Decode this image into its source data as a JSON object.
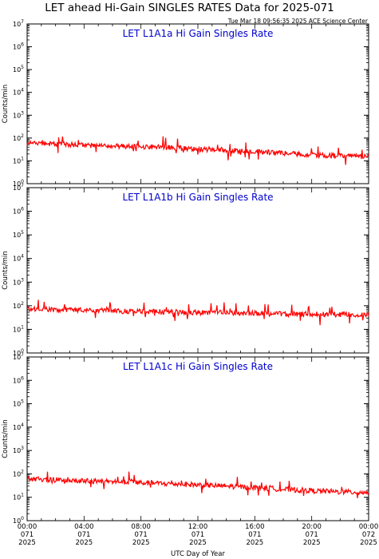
{
  "title": "LET ahead Hi-Gain SINGLES RATES Data for 2025-071",
  "timestamp": "Tue Mar 18 09:56:35 2025 ACE Science Center",
  "colors": {
    "trace": "#ff0000",
    "panel_label": "#0000cc",
    "axis": "#000000"
  },
  "xlabel": "UTC Day of Year",
  "x_ticks": [
    {
      "time": "00:00",
      "doy": "071",
      "year": "2025"
    },
    {
      "time": "04:00",
      "doy": "071",
      "year": "2025"
    },
    {
      "time": "08:00",
      "doy": "071",
      "year": "2025"
    },
    {
      "time": "12:00",
      "doy": "071",
      "year": "2025"
    },
    {
      "time": "16:00",
      "doy": "071",
      "year": "2025"
    },
    {
      "time": "20:00",
      "doy": "071",
      "year": "2025"
    },
    {
      "time": "00:00",
      "doy": "072",
      "year": "2025"
    }
  ],
  "y_ticks": [
    {
      "base": "10",
      "exp": "0"
    },
    {
      "base": "10",
      "exp": "1"
    },
    {
      "base": "10",
      "exp": "2"
    },
    {
      "base": "10",
      "exp": "3"
    },
    {
      "base": "10",
      "exp": "4"
    },
    {
      "base": "10",
      "exp": "5"
    },
    {
      "base": "10",
      "exp": "6"
    },
    {
      "base": "10",
      "exp": "7"
    }
  ],
  "chart_data": [
    {
      "type": "line",
      "title": "LET L1A1a Hi Gain Singles Rate",
      "ylabel": "Counts/min",
      "yscale": "log",
      "ylim": [
        1,
        10000000
      ],
      "xlim": [
        "2025-071 00:00",
        "2025-072 00:00"
      ],
      "x": [
        "00:00",
        "02:00",
        "04:00",
        "06:00",
        "08:00",
        "10:00",
        "12:00",
        "14:00",
        "16:00",
        "18:00",
        "20:00",
        "22:00",
        "24:00"
      ],
      "series": [
        {
          "values": [
            60,
            55,
            48,
            45,
            42,
            38,
            33,
            30,
            26,
            22,
            18,
            16,
            15
          ]
        }
      ]
    },
    {
      "type": "line",
      "title": "LET L1A1b Hi Gain Singles Rate",
      "ylabel": "Counts/min",
      "yscale": "log",
      "ylim": [
        1,
        10000000
      ],
      "xlim": [
        "2025-071 00:00",
        "2025-072 00:00"
      ],
      "x": [
        "00:00",
        "02:00",
        "04:00",
        "06:00",
        "08:00",
        "10:00",
        "12:00",
        "14:00",
        "16:00",
        "18:00",
        "20:00",
        "22:00",
        "24:00"
      ],
      "series": [
        {
          "values": [
            75,
            70,
            65,
            60,
            58,
            55,
            52,
            50,
            48,
            45,
            44,
            43,
            42
          ]
        }
      ]
    },
    {
      "type": "line",
      "title": "LET L1A1c Hi Gain Singles Rate",
      "ylabel": "Counts/min",
      "yscale": "log",
      "ylim": [
        1,
        10000000
      ],
      "xlim": [
        "2025-071 00:00",
        "2025-072 00:00"
      ],
      "x": [
        "00:00",
        "02:00",
        "04:00",
        "06:00",
        "08:00",
        "10:00",
        "12:00",
        "14:00",
        "16:00",
        "18:00",
        "20:00",
        "22:00",
        "24:00"
      ],
      "series": [
        {
          "values": [
            60,
            56,
            50,
            46,
            42,
            38,
            34,
            30,
            26,
            22,
            19,
            17,
            16
          ]
        }
      ]
    }
  ]
}
